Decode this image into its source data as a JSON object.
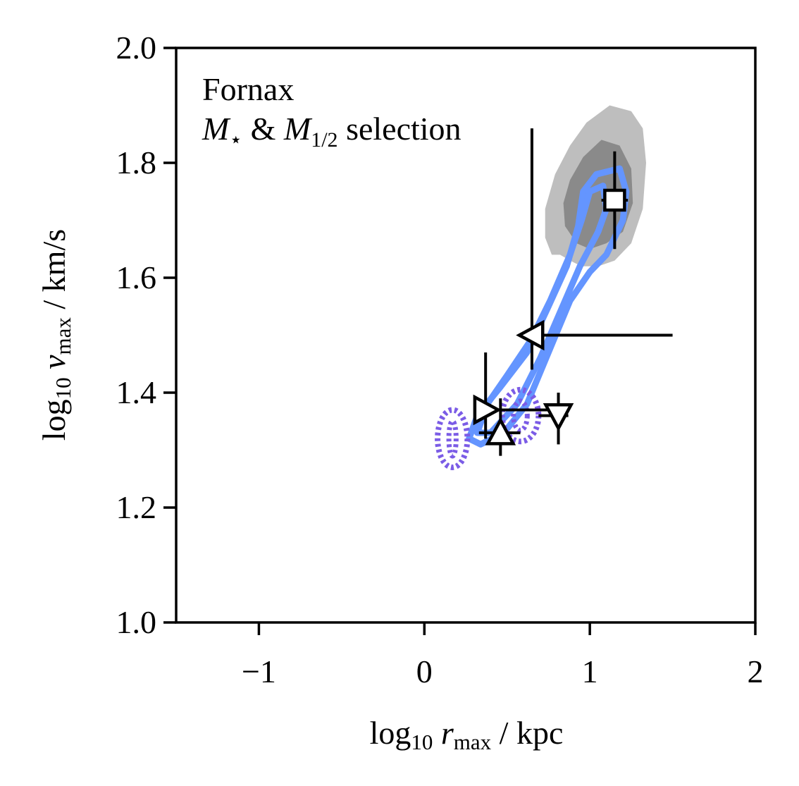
{
  "chart_data": {
    "type": "scatter",
    "title": "",
    "annotation_line1": "Fornax",
    "annotation_line2_math": "M⋆ & M1/2 selection",
    "xlabel": "log10 rmax / kpc",
    "ylabel": "log10 vmax / km/s",
    "xlim": [
      -1.5,
      2.0
    ],
    "ylim": [
      1.0,
      2.0
    ],
    "xticks": [
      -1,
      0,
      1,
      2
    ],
    "xtick_labels": [
      "−1",
      "0",
      "1",
      "2"
    ],
    "yticks": [
      1.0,
      1.2,
      1.4,
      1.6,
      1.8,
      2.0
    ],
    "ytick_labels": [
      "1.0",
      "1.2",
      "1.4",
      "1.6",
      "1.8",
      "2.0"
    ],
    "grid": false,
    "legend": "none",
    "colors": {
      "gray_outer": "#bebebe",
      "gray_inner": "#8a8a8a",
      "blue_contour": "#6495ff",
      "purple_dotted": "#7b5ce6",
      "marker_edge": "#000000",
      "marker_fill": "#ffffff"
    },
    "gray_density": {
      "outer": [
        [
          0.77,
          1.64
        ],
        [
          0.82,
          1.64
        ],
        [
          0.88,
          1.63
        ],
        [
          0.95,
          1.62
        ],
        [
          1.05,
          1.62
        ],
        [
          1.15,
          1.63
        ],
        [
          1.25,
          1.66
        ],
        [
          1.32,
          1.72
        ],
        [
          1.34,
          1.8
        ],
        [
          1.32,
          1.86
        ],
        [
          1.25,
          1.89
        ],
        [
          1.12,
          1.9
        ],
        [
          0.98,
          1.87
        ],
        [
          0.88,
          1.83
        ],
        [
          0.79,
          1.78
        ],
        [
          0.73,
          1.72
        ],
        [
          0.73,
          1.67
        ]
      ],
      "inner": [
        [
          0.85,
          1.69
        ],
        [
          0.92,
          1.66
        ],
        [
          1.0,
          1.65
        ],
        [
          1.1,
          1.66
        ],
        [
          1.2,
          1.68
        ],
        [
          1.26,
          1.73
        ],
        [
          1.25,
          1.79
        ],
        [
          1.18,
          1.83
        ],
        [
          1.07,
          1.84
        ],
        [
          0.96,
          1.81
        ],
        [
          0.88,
          1.77
        ],
        [
          0.84,
          1.73
        ]
      ]
    },
    "blue_contours": [
      [
        [
          0.27,
          1.32
        ],
        [
          0.34,
          1.31
        ],
        [
          0.48,
          1.33
        ],
        [
          0.62,
          1.38
        ],
        [
          0.75,
          1.47
        ],
        [
          0.88,
          1.56
        ],
        [
          1.0,
          1.61
        ],
        [
          1.1,
          1.64
        ],
        [
          1.2,
          1.7
        ],
        [
          1.22,
          1.75
        ],
        [
          1.18,
          1.79
        ],
        [
          1.04,
          1.78
        ],
        [
          0.96,
          1.75
        ],
        [
          0.93,
          1.69
        ],
        [
          0.86,
          1.62
        ],
        [
          0.75,
          1.55
        ],
        [
          0.62,
          1.47
        ],
        [
          0.46,
          1.41
        ],
        [
          0.32,
          1.36
        ]
      ],
      [
        [
          0.32,
          1.33
        ],
        [
          0.4,
          1.33
        ],
        [
          0.56,
          1.38
        ],
        [
          0.7,
          1.46
        ],
        [
          0.82,
          1.54
        ],
        [
          0.94,
          1.62
        ],
        [
          1.05,
          1.68
        ],
        [
          1.1,
          1.72
        ],
        [
          1.08,
          1.76
        ],
        [
          1.0,
          1.75
        ],
        [
          0.95,
          1.7
        ],
        [
          0.88,
          1.64
        ],
        [
          0.76,
          1.56
        ],
        [
          0.64,
          1.49
        ],
        [
          0.5,
          1.43
        ],
        [
          0.38,
          1.38
        ]
      ]
    ],
    "purple_dotted_contours": [
      {
        "center": [
          0.17,
          1.32
        ],
        "rx": 0.09,
        "ry": 0.05
      },
      {
        "center": [
          0.58,
          1.36
        ],
        "rx": 0.11,
        "ry": 0.045
      }
    ],
    "points": [
      {
        "marker": "square",
        "x": 1.15,
        "y": 1.735,
        "xerr": [
          0.08,
          0.08
        ],
        "yerr": [
          0.085,
          0.085
        ]
      },
      {
        "marker": "triangle-left",
        "x": 0.65,
        "y": 1.5,
        "xerr": [
          0.0,
          0.85
        ],
        "yerr": [
          0.06,
          0.36
        ]
      },
      {
        "marker": "triangle-right",
        "x": 0.37,
        "y": 1.37,
        "xerr": [
          0.07,
          0.43
        ],
        "yerr": [
          0.05,
          0.1
        ]
      },
      {
        "marker": "triangle-up",
        "x": 0.46,
        "y": 1.33,
        "xerr": [
          0.13,
          0.12
        ],
        "yerr": [
          0.04,
          0.06
        ]
      },
      {
        "marker": "triangle-down",
        "x": 0.81,
        "y": 1.36,
        "xerr": [
          0.12,
          0.06
        ],
        "yerr": [
          0.05,
          0.04
        ]
      }
    ]
  }
}
